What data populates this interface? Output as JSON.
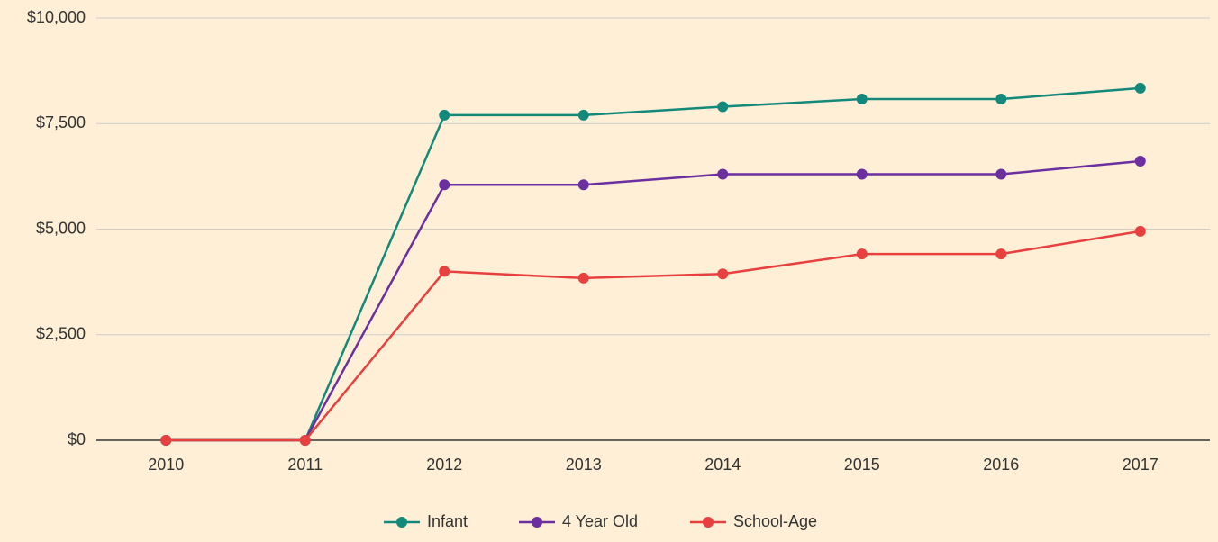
{
  "chart_data": {
    "type": "line",
    "categories": [
      "2010",
      "2011",
      "2012",
      "2013",
      "2014",
      "2015",
      "2016",
      "2017"
    ],
    "series": [
      {
        "name": "Infant",
        "color": "#12897a",
        "values": [
          0,
          0,
          7700,
          7700,
          7900,
          8080,
          8080,
          8340
        ]
      },
      {
        "name": "4 Year Old",
        "color": "#6b2fa0",
        "values": [
          0,
          0,
          6050,
          6050,
          6300,
          6300,
          6300,
          6610
        ]
      },
      {
        "name": "School-Age",
        "color": "#e8403f",
        "values": [
          0,
          0,
          4000,
          3840,
          3940,
          4410,
          4410,
          4950
        ]
      }
    ],
    "ylim": [
      0,
      10000
    ],
    "yticks": [
      {
        "value": 0,
        "label": "$0"
      },
      {
        "value": 2500,
        "label": "$2,500"
      },
      {
        "value": 5000,
        "label": "$5,000"
      },
      {
        "value": 7500,
        "label": "$7,500"
      },
      {
        "value": 10000,
        "label": "$10,000"
      }
    ],
    "grid": true,
    "legend": "bottom"
  }
}
